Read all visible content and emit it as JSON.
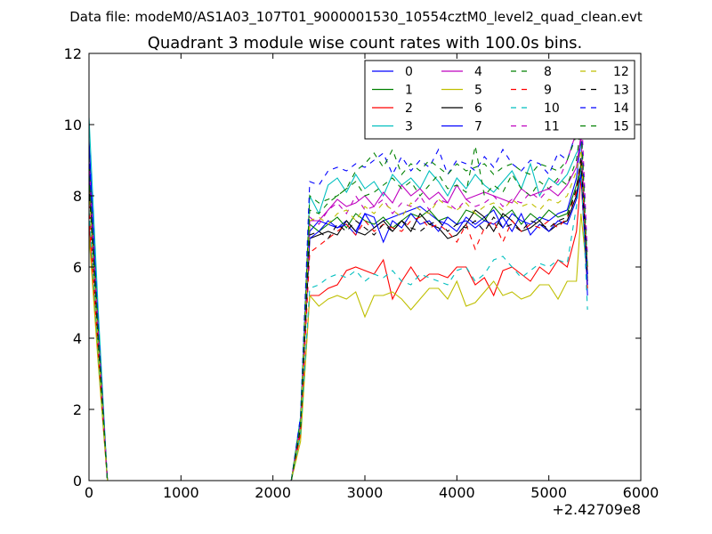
{
  "chart_data": {
    "type": "line",
    "suptitle": "Data file: modeM0/AS1A03_107T01_9000001530_10554cztM0_level2_quad_clean.evt",
    "title": "Quadrant 3 module wise count rates with 100.0s bins.",
    "xlabel": "",
    "ylabel": "",
    "x_offset_label": "+2.42709e8",
    "xlim": [
      0,
      6000
    ],
    "ylim": [
      0,
      12
    ],
    "x_ticks": [
      0,
      1000,
      2000,
      3000,
      4000,
      5000,
      6000
    ],
    "y_ticks": [
      0,
      2,
      4,
      6,
      8,
      10,
      12
    ],
    "legend_location": "upper right",
    "legend_columns": 4,
    "grid": false,
    "x": [
      0,
      100,
      200,
      300,
      400,
      500,
      600,
      700,
      800,
      900,
      1000,
      1100,
      1200,
      1300,
      1400,
      1500,
      1600,
      1700,
      1800,
      1900,
      2000,
      2100,
      2200,
      2300,
      2400,
      2500,
      2600,
      2700,
      2800,
      2900,
      3000,
      3100,
      3200,
      3300,
      3400,
      3500,
      3600,
      3700,
      3800,
      3900,
      4000,
      4100,
      4200,
      4300,
      4400,
      4500,
      4600,
      4700,
      4800,
      4900,
      5000,
      5100,
      5200,
      5300,
      5350,
      5420
    ],
    "series": [
      {
        "name": "0",
        "color": "#0000ff",
        "dash": "solid",
        "values": [
          9.6,
          4.3,
          0,
          0,
          0,
          0,
          0,
          0,
          0,
          0,
          0,
          0,
          0,
          0,
          0,
          0,
          0,
          0,
          0,
          0,
          0,
          0,
          0,
          1.6,
          7.0,
          7.3,
          7.2,
          7.1,
          7.3,
          7.0,
          7.5,
          7.1,
          7.3,
          7.4,
          7.5,
          7.6,
          7.7,
          7.5,
          7.3,
          7.2,
          7.0,
          7.4,
          7.2,
          7.4,
          7.6,
          7.1,
          7.5,
          7.3,
          7.2,
          7.4,
          7.3,
          7.5,
          7.6,
          8.5,
          9.6,
          5.2
        ]
      },
      {
        "name": "1",
        "color": "#008000",
        "dash": "solid",
        "values": [
          8.7,
          4.1,
          0,
          0,
          0,
          0,
          0,
          0,
          0,
          0,
          0,
          0,
          0,
          0,
          0,
          0,
          0,
          0,
          0,
          0,
          0,
          0,
          0,
          1.5,
          7.2,
          7.0,
          7.2,
          7.4,
          7.1,
          7.5,
          7.3,
          7.2,
          7.4,
          7.1,
          7.3,
          7.5,
          7.4,
          7.6,
          7.3,
          7.4,
          7.2,
          7.6,
          7.5,
          7.3,
          7.7,
          7.4,
          7.6,
          7.2,
          7.5,
          7.3,
          7.6,
          7.4,
          7.5,
          8.3,
          8.9,
          6.0
        ]
      },
      {
        "name": "2",
        "color": "#ff0000",
        "dash": "solid",
        "values": [
          7.3,
          3.4,
          0,
          0,
          0,
          0,
          0,
          0,
          0,
          0,
          0,
          0,
          0,
          0,
          0,
          0,
          0,
          0,
          0,
          0,
          0,
          0,
          0,
          1.3,
          5.2,
          5.2,
          5.4,
          5.5,
          5.9,
          6.0,
          5.9,
          5.8,
          6.2,
          5.1,
          5.6,
          6.0,
          5.6,
          5.8,
          5.8,
          5.7,
          6.0,
          6.0,
          5.5,
          5.7,
          5.2,
          5.9,
          6.0,
          5.8,
          5.6,
          6.0,
          5.8,
          6.2,
          6.0,
          7.0,
          8.5,
          5.4
        ]
      },
      {
        "name": "3",
        "color": "#00bfbf",
        "dash": "solid",
        "values": [
          10.2,
          4.8,
          0,
          0,
          0,
          0,
          0,
          0,
          0,
          0,
          0,
          0,
          0,
          0,
          0,
          0,
          0,
          0,
          0,
          0,
          0,
          0,
          0,
          1.8,
          8.0,
          7.5,
          8.3,
          8.5,
          8.1,
          8.6,
          8.2,
          8.4,
          8.0,
          8.6,
          8.3,
          8.5,
          8.2,
          8.7,
          8.4,
          8.0,
          8.5,
          8.2,
          8.6,
          8.3,
          8.1,
          8.4,
          8.7,
          8.2,
          8.9,
          8.0,
          8.5,
          8.3,
          8.6,
          9.2,
          9.4,
          6.0
        ]
      },
      {
        "name": "4",
        "color": "#bf00bf",
        "dash": "solid",
        "values": [
          8.8,
          4.2,
          0,
          0,
          0,
          0,
          0,
          0,
          0,
          0,
          0,
          0,
          0,
          0,
          0,
          0,
          0,
          0,
          0,
          0,
          0,
          0,
          0,
          1.6,
          7.3,
          7.3,
          7.6,
          7.9,
          7.7,
          7.8,
          8.0,
          7.7,
          8.1,
          7.8,
          8.3,
          8.0,
          8.2,
          7.9,
          8.1,
          7.8,
          8.3,
          7.9,
          8.0,
          8.1,
          8.0,
          7.9,
          7.8,
          8.2,
          8.0,
          8.1,
          8.2,
          8.0,
          8.3,
          8.8,
          9.7,
          5.8
        ]
      },
      {
        "name": "5",
        "color": "#bfbf00",
        "dash": "solid",
        "values": [
          6.9,
          3.3,
          0,
          0,
          0,
          0,
          0,
          0,
          0,
          0,
          0,
          0,
          0,
          0,
          0,
          0,
          0,
          0,
          0,
          0,
          0,
          0,
          0,
          1.1,
          5.2,
          4.9,
          5.1,
          5.2,
          5.1,
          5.3,
          4.6,
          5.2,
          5.2,
          5.3,
          5.1,
          4.8,
          5.1,
          5.4,
          5.4,
          5.1,
          5.6,
          4.9,
          5.0,
          5.3,
          5.6,
          5.2,
          5.3,
          5.1,
          5.2,
          5.5,
          5.5,
          5.1,
          5.6,
          5.6,
          7.5,
          5.7
        ]
      },
      {
        "name": "6",
        "color": "#000000",
        "dash": "solid",
        "values": [
          8.5,
          4.0,
          0,
          0,
          0,
          0,
          0,
          0,
          0,
          0,
          0,
          0,
          0,
          0,
          0,
          0,
          0,
          0,
          0,
          0,
          0,
          0,
          0,
          1.5,
          6.8,
          6.9,
          7.0,
          6.9,
          7.3,
          7.0,
          6.9,
          7.1,
          7.3,
          7.0,
          7.3,
          7.0,
          7.5,
          7.2,
          7.1,
          6.8,
          6.9,
          7.2,
          7.6,
          7.4,
          7.0,
          7.5,
          7.3,
          7.0,
          7.1,
          7.3,
          7.0,
          7.2,
          7.3,
          8.0,
          8.8,
          5.6
        ]
      },
      {
        "name": "7",
        "color": "#0000ff",
        "dash": "solid",
        "values": [
          8.9,
          4.2,
          0,
          0,
          0,
          0,
          0,
          0,
          0,
          0,
          0,
          0,
          0,
          0,
          0,
          0,
          0,
          0,
          0,
          0,
          0,
          0,
          0,
          1.6,
          6.8,
          7.0,
          7.3,
          7.1,
          7.2,
          6.9,
          7.5,
          7.4,
          6.7,
          7.3,
          7.1,
          7.5,
          7.2,
          7.3,
          7.0,
          7.4,
          7.2,
          7.3,
          7.1,
          7.3,
          7.2,
          7.4,
          7.0,
          7.5,
          6.9,
          7.2,
          7.0,
          7.3,
          7.2,
          7.9,
          8.6,
          5.5
        ]
      },
      {
        "name": "8",
        "color": "#008000",
        "dash": "dashed",
        "values": [
          9.1,
          4.3,
          0,
          0,
          0,
          0,
          0,
          0,
          0,
          0,
          0,
          0,
          0,
          0,
          0,
          0,
          0,
          0,
          0,
          0,
          0,
          0,
          0,
          1.7,
          8.0,
          7.8,
          7.9,
          8.0,
          8.2,
          8.4,
          8.0,
          8.1,
          8.3,
          8.5,
          8.2,
          8.4,
          8.0,
          8.3,
          8.6,
          8.2,
          8.3,
          8.1,
          9.4,
          8.0,
          8.3,
          8.1,
          8.6,
          8.2,
          8.0,
          8.4,
          8.2,
          8.5,
          8.3,
          9.0,
          10.0,
          5.8
        ]
      },
      {
        "name": "9",
        "color": "#ff0000",
        "dash": "dashed",
        "values": [
          7.8,
          3.6,
          0,
          0,
          0,
          0,
          0,
          0,
          0,
          0,
          0,
          0,
          0,
          0,
          0,
          0,
          0,
          0,
          0,
          0,
          0,
          0,
          0,
          1.4,
          6.4,
          6.6,
          6.8,
          7.0,
          7.2,
          6.9,
          7.3,
          7.0,
          7.2,
          7.1,
          7.0,
          7.3,
          7.4,
          7.1,
          7.2,
          7.0,
          6.7,
          7.2,
          6.5,
          7.1,
          7.3,
          6.7,
          7.3,
          7.0,
          7.2,
          7.1,
          7.3,
          7.1,
          7.4,
          8.1,
          9.0,
          5.9
        ]
      },
      {
        "name": "10",
        "color": "#00bfbf",
        "dash": "dashed",
        "values": [
          7.6,
          3.6,
          0,
          0,
          0,
          0,
          0,
          0,
          0,
          0,
          0,
          0,
          0,
          0,
          0,
          0,
          0,
          0,
          0,
          0,
          0,
          0,
          0,
          1.3,
          5.4,
          5.5,
          5.7,
          5.8,
          5.7,
          5.9,
          5.6,
          5.8,
          5.7,
          5.9,
          5.6,
          5.5,
          5.8,
          5.7,
          5.6,
          5.5,
          5.9,
          6.0,
          5.6,
          5.8,
          6.2,
          6.3,
          6.0,
          5.7,
          5.9,
          6.1,
          6.0,
          6.2,
          6.1,
          7.7,
          8.8,
          4.8
        ]
      },
      {
        "name": "11",
        "color": "#bf00bf",
        "dash": "dashed",
        "values": [
          9.0,
          4.2,
          0,
          0,
          0,
          0,
          0,
          0,
          0,
          0,
          0,
          0,
          0,
          0,
          0,
          0,
          0,
          0,
          0,
          0,
          0,
          0,
          0,
          1.6,
          7.4,
          7.2,
          7.6,
          7.8,
          7.5,
          8.0,
          7.6,
          7.7,
          7.9,
          7.5,
          7.8,
          7.7,
          8.0,
          7.6,
          7.9,
          7.8,
          7.6,
          7.9,
          7.7,
          7.8,
          8.0,
          7.7,
          7.9,
          7.8,
          8.1,
          7.9,
          8.2,
          8.4,
          9.0,
          9.8,
          10.7,
          6.3
        ]
      },
      {
        "name": "12",
        "color": "#bfbf00",
        "dash": "dashed",
        "values": [
          8.2,
          3.8,
          0,
          0,
          0,
          0,
          0,
          0,
          0,
          0,
          0,
          0,
          0,
          0,
          0,
          0,
          0,
          0,
          0,
          0,
          0,
          0,
          0,
          1.5,
          7.3,
          7.4,
          7.2,
          7.5,
          7.6,
          7.3,
          7.7,
          7.5,
          7.8,
          7.6,
          7.4,
          7.8,
          7.6,
          7.5,
          7.9,
          7.7,
          7.6,
          7.8,
          7.5,
          7.7,
          7.8,
          7.6,
          7.9,
          7.7,
          7.8,
          7.6,
          7.9,
          7.8,
          8.0,
          8.7,
          9.3,
          5.9
        ]
      },
      {
        "name": "13",
        "color": "#000000",
        "dash": "dashed",
        "values": [
          8.3,
          3.9,
          0,
          0,
          0,
          0,
          0,
          0,
          0,
          0,
          0,
          0,
          0,
          0,
          0,
          0,
          0,
          0,
          0,
          0,
          0,
          0,
          0,
          1.5,
          6.9,
          7.0,
          6.8,
          7.2,
          7.0,
          7.3,
          7.1,
          6.9,
          7.2,
          7.0,
          7.3,
          7.1,
          7.0,
          7.2,
          7.3,
          7.0,
          7.2,
          7.1,
          7.3,
          7.0,
          7.4,
          7.1,
          7.2,
          7.0,
          7.3,
          7.2,
          7.1,
          7.3,
          7.4,
          8.2,
          9.1,
          5.7
        ]
      },
      {
        "name": "14",
        "color": "#0000ff",
        "dash": "dashed",
        "values": [
          9.2,
          4.4,
          0,
          0,
          0,
          0,
          0,
          0,
          0,
          0,
          0,
          0,
          0,
          0,
          0,
          0,
          0,
          0,
          0,
          0,
          0,
          0,
          0,
          1.8,
          8.4,
          8.3,
          8.7,
          8.8,
          8.7,
          8.9,
          8.8,
          9.0,
          9.2,
          8.6,
          9.1,
          8.7,
          9.0,
          8.8,
          9.3,
          8.6,
          9.0,
          8.9,
          8.7,
          9.1,
          8.8,
          9.3,
          8.9,
          8.7,
          9.0,
          8.9,
          8.6,
          9.2,
          9.0,
          9.8,
          10.3,
          5.8
        ]
      },
      {
        "name": "15",
        "color": "#008000",
        "dash": "dashed",
        "values": [
          8.6,
          4.1,
          0,
          0,
          0,
          0,
          0,
          0,
          0,
          0,
          0,
          0,
          0,
          0,
          0,
          0,
          0,
          0,
          0,
          0,
          0,
          0,
          0,
          1.6,
          7.6,
          7.5,
          7.8,
          8.0,
          8.2,
          8.7,
          8.9,
          9.2,
          8.8,
          9.3,
          8.6,
          8.9,
          8.7,
          9.0,
          8.8,
          8.6,
          8.9,
          8.7,
          8.8,
          8.9,
          8.6,
          8.8,
          8.9,
          8.7,
          8.6,
          8.9,
          8.8,
          8.7,
          9.0,
          9.7,
          10.1,
          5.9
        ]
      }
    ]
  }
}
